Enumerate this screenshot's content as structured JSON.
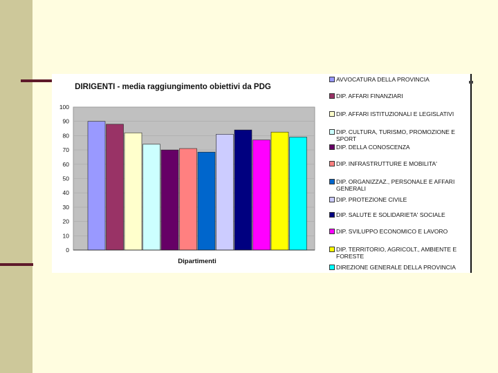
{
  "chart_data": {
    "type": "bar",
    "title": "DIRIGENTI - media raggiungimento obiettivi da PDG",
    "xlabel": "Dipartimenti",
    "ylabel": "",
    "ylim": [
      0,
      100
    ],
    "yticks": [
      "100",
      "90",
      "80",
      "70",
      "60",
      "50",
      "40",
      "30",
      "20",
      "10",
      "0"
    ],
    "grid": true,
    "legend_position": "right",
    "plot_background": "#c0c0c0",
    "series": [
      {
        "name": "AVVOCATURA DELLA PROVINCIA",
        "value": 90,
        "color": "#9999ff"
      },
      {
        "name": "DIP. AFFARI FINANZIARI",
        "value": 88,
        "color": "#993366"
      },
      {
        "name": "DIP. AFFARI ISTITUZIONALI E LEGISLATIVI",
        "value": 82,
        "color": "#ffffcc"
      },
      {
        "name": "DIP. CULTURA, TURISMO, PROMOZIONE E SPORT",
        "value": 74,
        "color": "#ccffff"
      },
      {
        "name": "DIP. DELLA CONOSCENZA",
        "value": 70,
        "color": "#660066"
      },
      {
        "name": "DIP. INFRASTRUTTURE E MOBILITA'",
        "value": 71,
        "color": "#ff8080"
      },
      {
        "name": "DIP. ORGANIZZAZ., PERSONALE E AFFARI GENERALI",
        "value": 68.5,
        "color": "#0066cc"
      },
      {
        "name": "DIP. PROTEZIONE CIVILE",
        "value": 81,
        "color": "#ccccff"
      },
      {
        "name": "DIP. SALUTE E SOLIDARIETA' SOCIALE",
        "value": 84,
        "color": "#000080"
      },
      {
        "name": "DIP. SVILUPPO ECONOMICO E LAVORO",
        "value": 77,
        "color": "#ff00ff"
      },
      {
        "name": "DIP. TERRITORIO, AGRICOLT., AMBIENTE E FORESTE",
        "value": 82.5,
        "color": "#ffff00"
      },
      {
        "name": "DIREZIONE GENERALE DELLA PROVINCIA",
        "value": 79,
        "color": "#00ffff"
      }
    ]
  }
}
